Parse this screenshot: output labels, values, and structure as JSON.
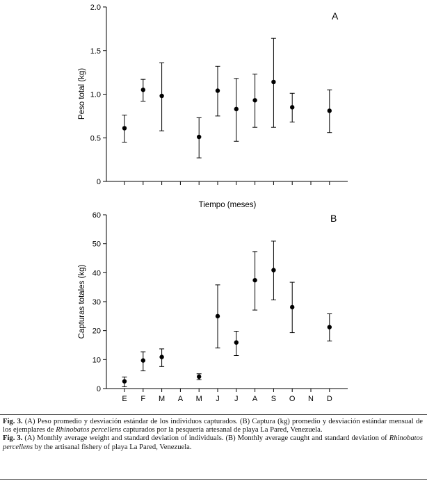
{
  "chart_data": [
    {
      "panel_label": "A",
      "type": "scatter",
      "error_bars": true,
      "x": [
        "",
        "",
        "",
        "",
        "",
        "",
        "",
        "",
        "",
        "",
        "",
        ""
      ],
      "series": [
        {
          "values": [
            0.61,
            1.05,
            0.98,
            null,
            0.51,
            1.04,
            0.83,
            0.93,
            1.14,
            0.85,
            null,
            0.81
          ],
          "lower": [
            0.45,
            0.92,
            0.58,
            null,
            0.27,
            0.75,
            0.46,
            0.62,
            0.62,
            0.68,
            null,
            0.56
          ],
          "upper": [
            0.76,
            1.17,
            1.36,
            null,
            0.73,
            1.32,
            1.18,
            1.23,
            1.64,
            1.01,
            null,
            1.05
          ]
        }
      ],
      "ylabel": "Peso total (kg)",
      "ylim": [
        0,
        2.0
      ],
      "yticks": [
        "0",
        "0.5",
        "1.0",
        "1.5",
        "2.0"
      ]
    },
    {
      "panel_label": "B",
      "type": "scatter",
      "error_bars": true,
      "x": [
        "E",
        "F",
        "M",
        "A",
        "M",
        "J",
        "J",
        "A",
        "S",
        "O",
        "N",
        "D"
      ],
      "series": [
        {
          "values": [
            2.5,
            9.7,
            10.9,
            null,
            4.1,
            25.0,
            15.9,
            37.4,
            40.9,
            28.1,
            null,
            21.2
          ],
          "lower": [
            0.6,
            6.1,
            7.6,
            null,
            3.0,
            14.0,
            11.4,
            27.1,
            30.6,
            19.3,
            null,
            16.4
          ],
          "upper": [
            4.0,
            12.7,
            13.7,
            null,
            5.1,
            35.8,
            19.8,
            47.3,
            50.9,
            36.7,
            null,
            25.8
          ]
        }
      ],
      "xlabel": "Tiempo (meses)",
      "ylabel": "Capturas totales (kg)",
      "ylim": [
        0,
        60
      ],
      "yticks": [
        "0",
        "10",
        "20",
        "30",
        "40",
        "50",
        "60"
      ]
    }
  ],
  "caption": {
    "es_fig": "Fig. 3.",
    "es_text_1": " (A) Peso promedio y desviación estándar de los individuos capturados. (B) Captura (kg) promedio y desviación estándar mensual de los ejemplares de ",
    "species": "Rhinobatos percellens",
    "es_text_2": " capturados por la pesquería artesanal de playa La Pared, Venezuela.",
    "en_fig": "Fig. 3.",
    "en_text_1": " (A) Monthly average weight and standard deviation of individuals. (B) Monthly average caught and standard deviation of ",
    "en_text_2": " by the artisanal fishery of playa La Pared, Venezuela."
  }
}
